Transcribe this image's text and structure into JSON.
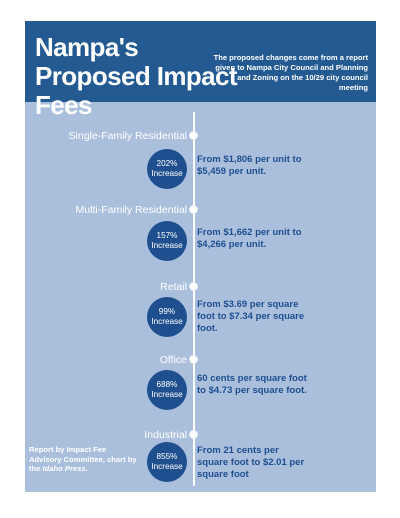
{
  "header": {
    "title": "Nampa's Proposed Impact Fees",
    "subtitle": "The proposed changes come from a report given to Nampa City Council and Planning and Zoning on the 10/29 city council meeting"
  },
  "categories": [
    {
      "label": "Single-Family Residential",
      "pct": "202%",
      "increase": "Increase",
      "desc": "From $1,806 per unit to $5,459 per unit."
    },
    {
      "label": "Multi-Family Residential",
      "pct": "157%",
      "increase": "Increase",
      "desc": "From $1,662 per unit to $4,266 per unit."
    },
    {
      "label": "Retail",
      "pct": "99%",
      "increase": "Increase",
      "desc": "From $3.69 per square foot to $7.34 per square foot."
    },
    {
      "label": "Office",
      "pct": "688%",
      "increase": "Increase",
      "desc": "60 cents per square foot to $4.73 per square foot."
    },
    {
      "label": "Industrial",
      "pct": "855%",
      "increase": "Increase",
      "desc": "From 21 cents per square foot to $2.01 per square foot"
    }
  ],
  "credit": {
    "line1": "Report by Impact Fee Advisory Committee, chart by the",
    "source": "Idaho Press",
    "end": "."
  },
  "colors": {
    "header_bg": "#235a92",
    "panel_bg": "#a9bfdc",
    "circle_bg": "#1f4f8f",
    "desc_text": "#1f4f8f"
  }
}
